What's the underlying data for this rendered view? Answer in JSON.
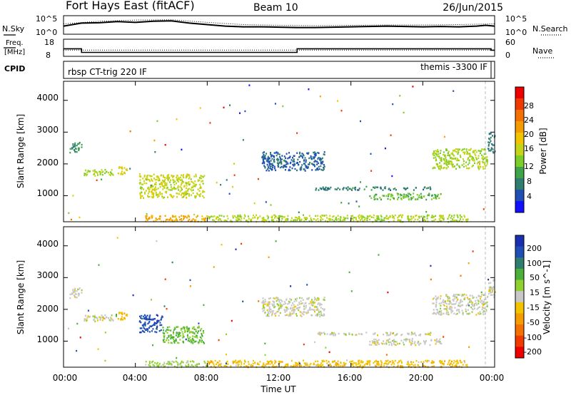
{
  "header": {
    "title": "Fort Hays East (fitACF)",
    "beam": "Beam 10",
    "date": "26/Jun/2015"
  },
  "noise_panel": {
    "left_label": "N.Sky",
    "right_label": "N.Search",
    "left_ticks": [
      "10^5",
      "10^0"
    ],
    "right_ticks": [
      "10^5",
      "10^0"
    ]
  },
  "freq_panel": {
    "left_label_line1": "Freq.",
    "left_label_line2": "[MHz]",
    "right_label": "Nave",
    "left_ticks": [
      "18",
      "8"
    ],
    "right_ticks": [
      "60",
      "0"
    ]
  },
  "cpid_panel": {
    "label": "CPID",
    "left_text": "rbsp CT-trig 220 IF",
    "right_text": "themis -3300 IF"
  },
  "time_axis": {
    "label": "Time UT",
    "ticks": [
      "00:00",
      "04:00",
      "08:00",
      "12:00",
      "16:00",
      "20:00",
      "00:00"
    ]
  },
  "power_panel": {
    "ylabel": "Slant Range [km]",
    "yticks": [
      "1000",
      "2000",
      "3000",
      "4000"
    ],
    "colorbar_label": "Power [dB]",
    "colorbar_ticks": [
      "4",
      "8",
      "12",
      "16",
      "20",
      "24",
      "28"
    ]
  },
  "velocity_panel": {
    "ylabel": "Slant Range [km]",
    "yticks": [
      "1000",
      "2000",
      "3000",
      "4000"
    ],
    "colorbar_label": "Velocity [m s^-1]",
    "colorbar_ticks": [
      "200",
      "100",
      "50",
      "15",
      "-15",
      "-50",
      "-100",
      "-200"
    ]
  },
  "colors": {
    "power_scale": [
      "#1010ff",
      "#1f4fb5",
      "#2e7d6e",
      "#3fa34a",
      "#7ccd2a",
      "#c6d417",
      "#f2c400",
      "#f59d00",
      "#f47000",
      "#f03a00",
      "#ee0000"
    ],
    "velocity_scale": [
      "#1a2fb0",
      "#1f4fb5",
      "#2e7d6e",
      "#4caf3a",
      "#8fd12f",
      "#c8c8c8",
      "#f2c400",
      "#f59d00",
      "#f47000",
      "#f03a00",
      "#ee0000"
    ]
  },
  "chart_data": [
    {
      "type": "line",
      "panel": "noise",
      "x_range": [
        "00:00",
        "24:00"
      ],
      "series": [
        {
          "name": "N.Sky",
          "style": "solid",
          "x": [
            0,
            0.5,
            1,
            2,
            3,
            4,
            5,
            6,
            7,
            8,
            9,
            10,
            11,
            12,
            13,
            14,
            15,
            16,
            17,
            18,
            19,
            20,
            21,
            22,
            23,
            23.5,
            24
          ],
          "y": [
            2.2,
            2.6,
            3.0,
            3.1,
            3.4,
            3.2,
            3.5,
            3.6,
            3.0,
            2.6,
            2.2,
            2.0,
            2.0,
            1.9,
            1.8,
            1.8,
            1.9,
            2.0,
            2.1,
            2.2,
            2.1,
            2.0,
            2.1,
            2.0,
            2.2,
            2.4,
            2.2
          ]
        },
        {
          "name": "N.Search",
          "style": "dotted",
          "x": [
            0,
            2,
            4,
            6,
            8,
            10,
            12,
            14,
            16,
            18,
            20,
            22,
            24
          ],
          "y": [
            2.8,
            3.5,
            3.8,
            3.9,
            3.2,
            2.6,
            2.4,
            2.3,
            2.4,
            2.5,
            2.5,
            2.6,
            2.8
          ]
        }
      ]
    },
    {
      "type": "line",
      "panel": "frequency",
      "series": [
        {
          "name": "Freq.",
          "style": "solid",
          "x": [
            0,
            1,
            1,
            13,
            13,
            23.8,
            23.8,
            24
          ],
          "y": [
            12.4,
            12.4,
            10.3,
            10.3,
            12.4,
            12.4,
            11.6,
            11.6
          ]
        },
        {
          "name": "Nave",
          "style": "dotted",
          "x": [
            0,
            24
          ],
          "y": [
            22,
            22
          ]
        }
      ]
    },
    {
      "type": "heatmap",
      "panel": "power",
      "xlabel": "Time UT",
      "ylabel": "Slant Range [km]",
      "xlim": [
        0,
        24
      ],
      "ylim": [
        180,
        4600
      ],
      "clim": [
        0,
        30
      ],
      "units": "dB",
      "regions": [
        {
          "t": [
            0.3,
            1.0
          ],
          "r": [
            2350,
            2700
          ],
          "v": 8
        },
        {
          "t": [
            1.0,
            2.8
          ],
          "r": [
            1650,
            1850
          ],
          "v": 13
        },
        {
          "t": [
            3.0,
            3.5
          ],
          "r": [
            1700,
            1950
          ],
          "v": 16
        },
        {
          "t": [
            4.2,
            7.8
          ],
          "r": [
            950,
            1700
          ],
          "v": 15
        },
        {
          "t": [
            4.5,
            8.0
          ],
          "r": [
            200,
            400
          ],
          "v": 20
        },
        {
          "t": [
            8.0,
            22.5
          ],
          "r": [
            200,
            420
          ],
          "v": 14
        },
        {
          "t": [
            11.0,
            14.5
          ],
          "r": [
            1800,
            2400
          ],
          "v": 5
        },
        {
          "t": [
            14.0,
            20.5
          ],
          "r": [
            1200,
            1300
          ],
          "v": 7
        },
        {
          "t": [
            17.0,
            21.0
          ],
          "r": [
            900,
            1100
          ],
          "v": 11
        },
        {
          "t": [
            20.5,
            23.6
          ],
          "r": [
            1850,
            2500
          ],
          "v": 14
        },
        {
          "t": [
            23.6,
            24.0
          ],
          "r": [
            2400,
            3000
          ],
          "v": 6
        }
      ]
    },
    {
      "type": "heatmap",
      "panel": "velocity",
      "xlabel": "Time UT",
      "ylabel": "Slant Range [km]",
      "xlim": [
        0,
        24
      ],
      "ylim": [
        180,
        4600
      ],
      "clim": [
        -200,
        200
      ],
      "units": "m s^-1",
      "regions": [
        {
          "t": [
            0.3,
            1.0
          ],
          "r": [
            2350,
            2700
          ],
          "v": 0
        },
        {
          "t": [
            1.0,
            2.8
          ],
          "r": [
            1650,
            1850
          ],
          "v": 0
        },
        {
          "t": [
            3.0,
            3.5
          ],
          "r": [
            1700,
            1950
          ],
          "v": -50
        },
        {
          "t": [
            4.2,
            5.5
          ],
          "r": [
            1300,
            1850
          ],
          "v": 150
        },
        {
          "t": [
            5.5,
            7.8
          ],
          "r": [
            950,
            1500
          ],
          "v": 60
        },
        {
          "t": [
            4.5,
            8.0
          ],
          "r": [
            200,
            400
          ],
          "v": 30
        },
        {
          "t": [
            8.0,
            22.5
          ],
          "r": [
            200,
            420
          ],
          "v": -40
        },
        {
          "t": [
            11.0,
            14.5
          ],
          "r": [
            1800,
            2400
          ],
          "v": 0
        },
        {
          "t": [
            14.0,
            20.5
          ],
          "r": [
            1200,
            1300
          ],
          "v": 0
        },
        {
          "t": [
            17.0,
            21.0
          ],
          "r": [
            900,
            1100
          ],
          "v": 0
        },
        {
          "t": [
            20.5,
            23.6
          ],
          "r": [
            1850,
            2500
          ],
          "v": 0
        },
        {
          "t": [
            23.6,
            24.0
          ],
          "r": [
            2400,
            3000
          ],
          "v": 0
        }
      ]
    }
  ]
}
